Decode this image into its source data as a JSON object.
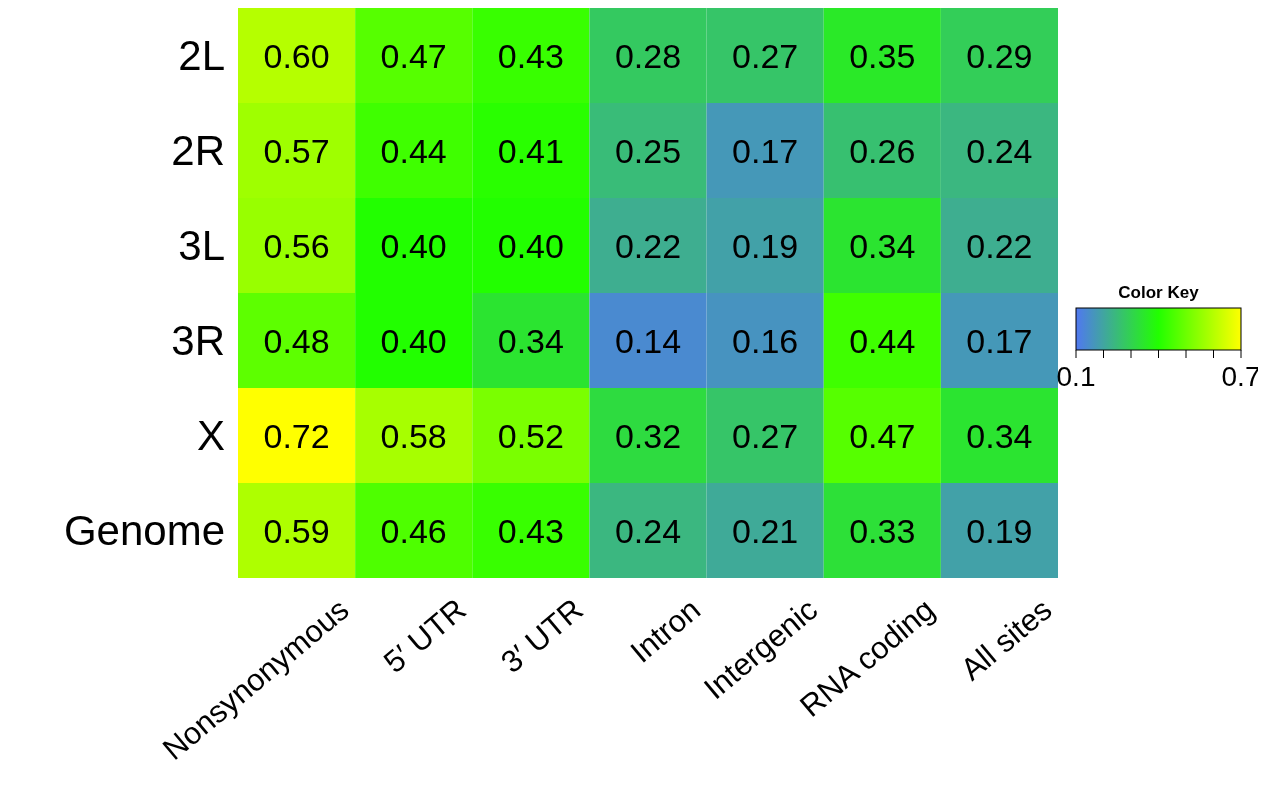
{
  "chart_data": {
    "type": "heatmap",
    "categories": [
      "Nonsynonymous",
      "5′ UTR",
      "3′ UTR",
      "Intron",
      "Intergenic",
      "RNA coding",
      "All sites"
    ],
    "y_categories": [
      "2L",
      "2R",
      "3L",
      "3R",
      "X",
      "Genome"
    ],
    "cells": [
      [
        0.6,
        0.47,
        0.43,
        0.28,
        0.27,
        0.35,
        0.29
      ],
      [
        0.57,
        0.44,
        0.41,
        0.25,
        0.17,
        0.26,
        0.24
      ],
      [
        0.56,
        0.4,
        0.4,
        0.22,
        0.19,
        0.34,
        0.22
      ],
      [
        0.48,
        0.4,
        0.34,
        0.14,
        0.16,
        0.44,
        0.17
      ],
      [
        0.72,
        0.58,
        0.52,
        0.32,
        0.27,
        0.47,
        0.34
      ],
      [
        0.59,
        0.46,
        0.43,
        0.24,
        0.21,
        0.33,
        0.19
      ]
    ],
    "cell_labels": [
      [
        "0.60",
        "0.47",
        "0.43",
        "0.28",
        "0.27",
        "0.35",
        "0.29"
      ],
      [
        "0.57",
        "0.44",
        "0.41",
        "0.25",
        "0.17",
        "0.26",
        "0.24"
      ],
      [
        "0.56",
        "0.40",
        "0.40",
        "0.22",
        "0.19",
        "0.34",
        "0.22"
      ],
      [
        "0.48",
        "0.40",
        "0.34",
        "0.14",
        "0.16",
        "0.44",
        "0.17"
      ],
      [
        "0.72",
        "0.58",
        "0.52",
        "0.32",
        "0.27",
        "0.47",
        "0.34"
      ],
      [
        "0.59",
        "0.46",
        "0.43",
        "0.24",
        "0.21",
        "0.33",
        "0.19"
      ]
    ],
    "clabel": "Color Key",
    "clim": [
      0.1,
      0.7
    ],
    "cticks": [
      0.1,
      {
        "value": 0.2,
        "label": null
      },
      {
        "value": 0.3,
        "label": null
      },
      {
        "value": 0.4,
        "label": null
      },
      {
        "value": 0.5,
        "label": null
      },
      {
        "value": 0.6,
        "label": null
      },
      0.7
    ]
  }
}
